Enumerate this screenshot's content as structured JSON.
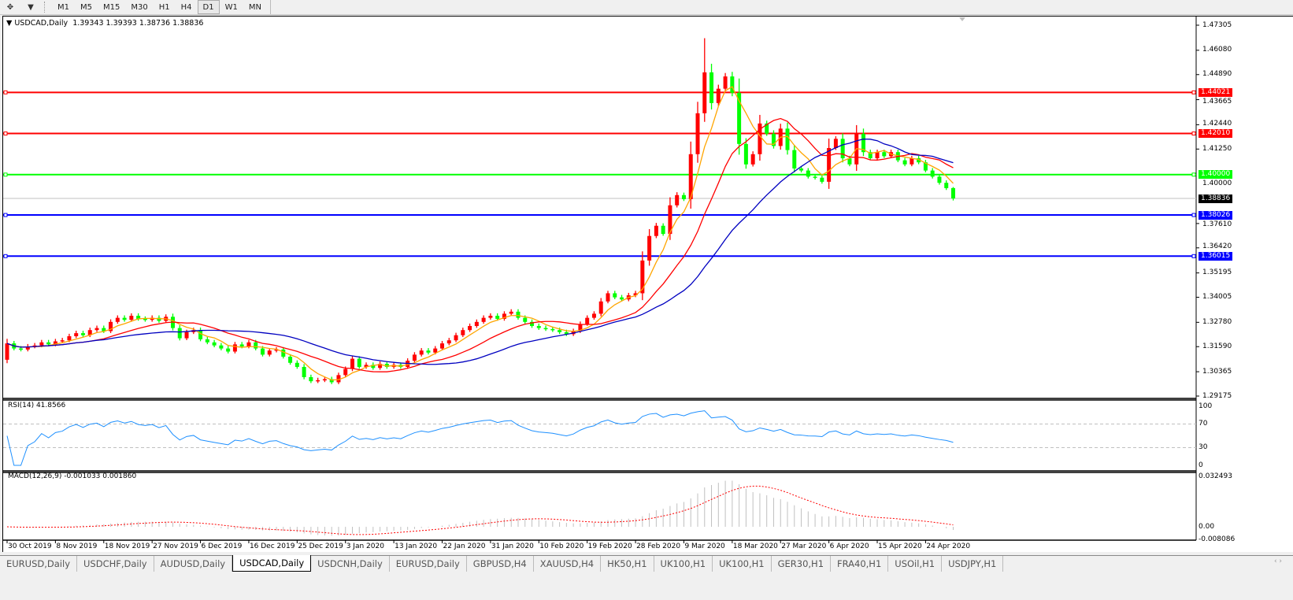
{
  "toolbar": {
    "tools": [
      "crosshair-tools-icon",
      "dropdown-icon"
    ],
    "timeframes": [
      "M1",
      "M5",
      "M15",
      "M30",
      "H1",
      "H4",
      "D1",
      "W1",
      "MN"
    ],
    "active_timeframe": "D1"
  },
  "chart": {
    "header": "USDCAD,Daily",
    "ohlc_text": "1.39343 1.39393 1.38736 1.38836",
    "price_ticks": [
      "1.47305",
      "1.46080",
      "1.44890",
      "1.43665",
      "1.42440",
      "1.41250",
      "1.40000",
      "1.38836",
      "1.37610",
      "1.36420",
      "1.35195",
      "1.34005",
      "1.32780",
      "1.31590",
      "1.30365",
      "1.29175"
    ],
    "price_tick_values": [
      1.47305,
      1.4608,
      1.4489,
      1.43665,
      1.4244,
      1.4125,
      1.3761,
      1.3642,
      1.35195,
      1.34005,
      1.3278,
      1.3159,
      1.30365,
      1.29175
    ],
    "price_range": [
      1.29175,
      1.47305
    ],
    "bid": {
      "value": 1.38836,
      "label": "1.38836",
      "color": "#c0c0c0",
      "label_bg": "#000000"
    },
    "levels": [
      {
        "value": 1.44021,
        "label": "1.44021",
        "color": "#ff0000"
      },
      {
        "value": 1.4201,
        "label": "1.42010",
        "color": "#ff0000"
      },
      {
        "value": 1.4,
        "label": "1.40000",
        "color": "#00ff00"
      },
      {
        "value": 1.38026,
        "label": "1.38026",
        "color": "#0000ff"
      },
      {
        "value": 1.36015,
        "label": "1.36015",
        "color": "#0000ff"
      }
    ],
    "colors": {
      "bull": "#ff0000",
      "bear": "#00ff00",
      "ma_fast": "#ffa500",
      "ma_mid": "#ff0000",
      "ma_slow": "#0000c0",
      "rsi": "#1e90ff",
      "macd_hist": "#c0c0c0",
      "macd_signal": "#ff0000"
    },
    "x_labels": [
      "30 Oct 2019",
      "8 Nov 2019",
      "18 Nov 2019",
      "27 Nov 2019",
      "6 Dec 2019",
      "16 Dec 2019",
      "25 Dec 2019",
      "3 Jan 2020",
      "13 Jan 2020",
      "22 Jan 2020",
      "31 Jan 2020",
      "10 Feb 2020",
      "19 Feb 2020",
      "28 Feb 2020",
      "9 Mar 2020",
      "18 Mar 2020",
      "27 Mar 2020",
      "6 Apr 2020",
      "15 Apr 2020",
      "24 Apr 2020"
    ]
  },
  "chart_data": {
    "type": "candlestick",
    "symbol": "USDCAD",
    "timeframe": "Daily",
    "ylim": [
      1.29175,
      1.47305
    ],
    "closes": [
      1.3175,
      1.315,
      1.3145,
      1.316,
      1.3165,
      1.318,
      1.317,
      1.3185,
      1.319,
      1.321,
      1.3225,
      1.3215,
      1.324,
      1.325,
      1.3235,
      1.328,
      1.33,
      1.329,
      1.331,
      1.3295,
      1.329,
      1.33,
      1.3285,
      1.3305,
      1.325,
      1.32,
      1.323,
      1.324,
      1.3195,
      1.318,
      1.3165,
      1.315,
      1.3135,
      1.317,
      1.316,
      1.318,
      1.315,
      1.312,
      1.314,
      1.3145,
      1.311,
      1.308,
      1.306,
      1.301,
      1.299,
      1.2995,
      1.3,
      1.2985,
      1.302,
      1.305,
      1.31,
      1.306,
      1.307,
      1.3055,
      1.3075,
      1.306,
      1.307,
      1.306,
      1.309,
      1.312,
      1.314,
      1.313,
      1.315,
      1.3175,
      1.319,
      1.3215,
      1.324,
      1.326,
      1.328,
      1.33,
      1.331,
      1.3295,
      1.332,
      1.333,
      1.33,
      1.328,
      1.326,
      1.325,
      1.3245,
      1.324,
      1.323,
      1.322,
      1.3235,
      1.327,
      1.33,
      1.332,
      1.338,
      1.342,
      1.34,
      1.339,
      1.341,
      1.342,
      1.358,
      1.37,
      1.375,
      1.371,
      1.385,
      1.39,
      1.388,
      1.41,
      1.43,
      1.45,
      1.435,
      1.442,
      1.448,
      1.44,
      1.415,
      1.405,
      1.41,
      1.425,
      1.42,
      1.414,
      1.4225,
      1.412,
      1.403,
      1.402,
      1.399,
      1.3985,
      1.3965,
      1.413,
      1.4175,
      1.408,
      1.405,
      1.42,
      1.411,
      1.408,
      1.411,
      1.409,
      1.411,
      1.407,
      1.405,
      1.408,
      1.406,
      1.402,
      1.399,
      1.396,
      1.3934,
      1.38836
    ],
    "first_open": 1.3095,
    "last_bar": {
      "open": 1.39343,
      "high": 1.39393,
      "low": 1.38736,
      "close": 1.38836
    },
    "peak_high": 1.4667
  },
  "rsi": {
    "label": "RSI(14) 41.8566",
    "levels": [
      70,
      30
    ],
    "ticks": [
      "100",
      "70",
      "30",
      "0"
    ],
    "range": [
      0,
      100
    ]
  },
  "macd": {
    "label": "MACD(12,26,9) -0.001033 0.001860",
    "ticks": [
      "0.032493",
      "0.00",
      "-0.008086"
    ],
    "range": [
      -0.008086,
      0.032493
    ]
  },
  "tabs": [
    {
      "label": "EURUSD,Daily"
    },
    {
      "label": "USDCHF,Daily"
    },
    {
      "label": "AUDUSD,Daily"
    },
    {
      "label": "USDCAD,Daily",
      "active": true
    },
    {
      "label": "USDCNH,Daily"
    },
    {
      "label": "EURUSD,Daily"
    },
    {
      "label": "GBPUSD,H4"
    },
    {
      "label": "XAUUSD,H4"
    },
    {
      "label": "HK50,H1"
    },
    {
      "label": "UK100,H1"
    },
    {
      "label": "UK100,H1"
    },
    {
      "label": "GER30,H1"
    },
    {
      "label": "FRA40,H1"
    },
    {
      "label": "USOil,H1"
    },
    {
      "label": "USDJPY,H1"
    }
  ],
  "tab_scroll": "‹ ›"
}
